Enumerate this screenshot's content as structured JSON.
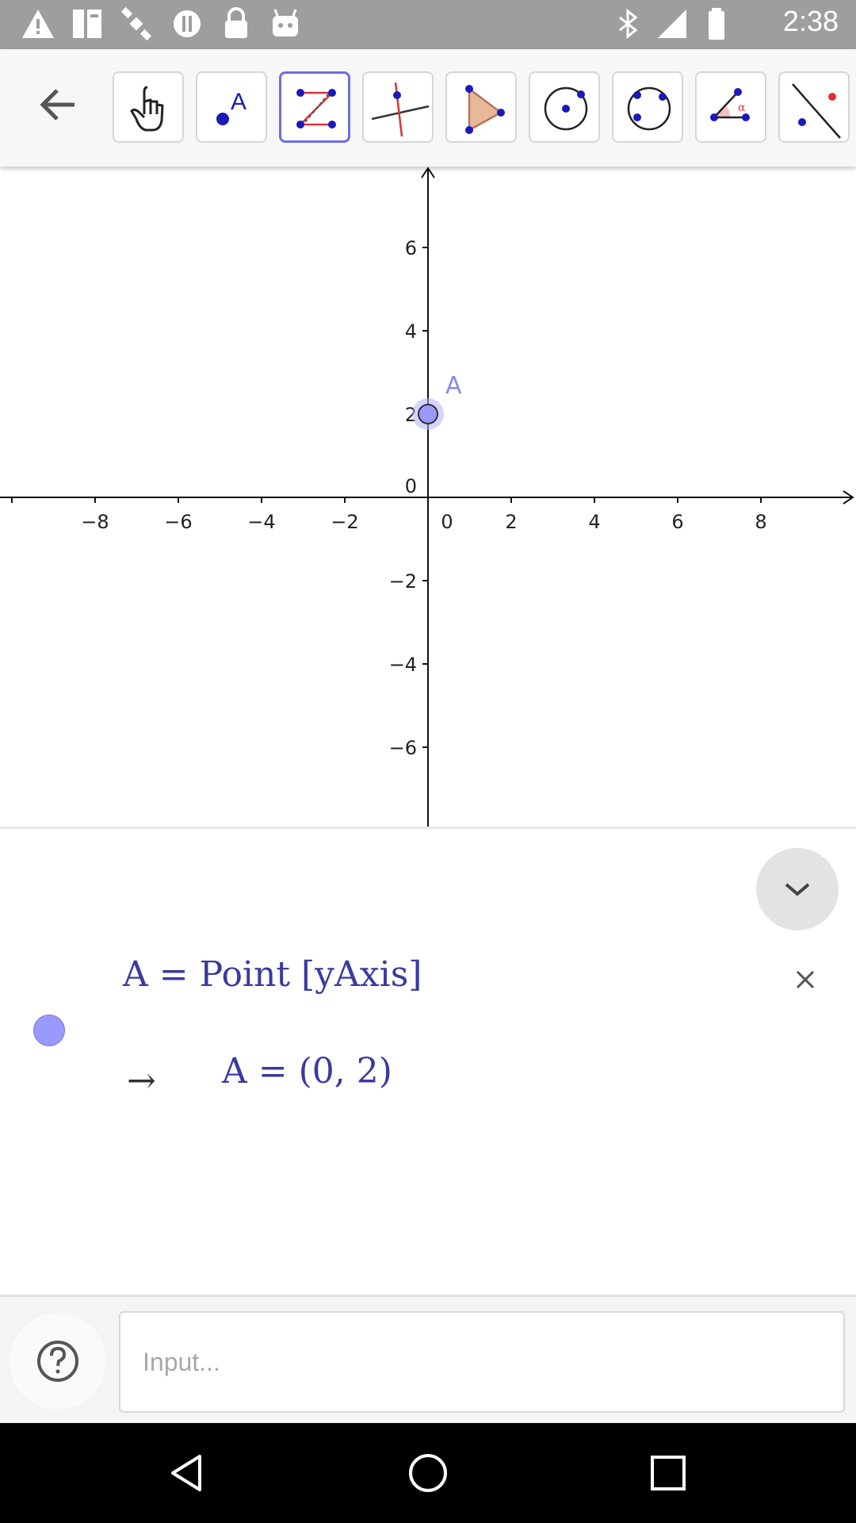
{
  "status_bar": {
    "time": "2:38",
    "icons": [
      "warning-icon",
      "fax-icon",
      "satellite-icon",
      "sync-icon",
      "lock-icon",
      "android-icon",
      "bluetooth-icon",
      "signal-icon",
      "battery-icon"
    ]
  },
  "toolbar": {
    "back_icon": "arrow-left-icon",
    "tools": [
      {
        "name": "move-tool",
        "selected": false
      },
      {
        "name": "point-tool",
        "label": "A",
        "selected": false
      },
      {
        "name": "polyline-tool",
        "selected": true
      },
      {
        "name": "perpendicular-line-tool",
        "selected": false
      },
      {
        "name": "polygon-tool",
        "selected": false
      },
      {
        "name": "circle-center-point-tool",
        "selected": false
      },
      {
        "name": "circle-three-points-tool",
        "selected": false
      },
      {
        "name": "angle-tool",
        "label": "α",
        "selected": false
      },
      {
        "name": "reflect-tool",
        "selected": false
      }
    ]
  },
  "graphics": {
    "x_ticks": [
      "−8",
      "−6",
      "−4",
      "−2",
      "0",
      "2",
      "4",
      "6",
      "8"
    ],
    "y_ticks": [
      "6",
      "4",
      "2",
      "0",
      "−2",
      "−4",
      "−6"
    ],
    "point": {
      "label": "A",
      "x": 0,
      "y": 2
    }
  },
  "algebra": {
    "definition": "A = Point [yAxis]",
    "arrow": "→",
    "value": "A = (0, 2)"
  },
  "input_bar": {
    "placeholder": "Input..."
  },
  "colors": {
    "point": "#9999ff",
    "algebra_text": "#3a3aa0",
    "selected_tool_border": "#6b6ee8"
  }
}
